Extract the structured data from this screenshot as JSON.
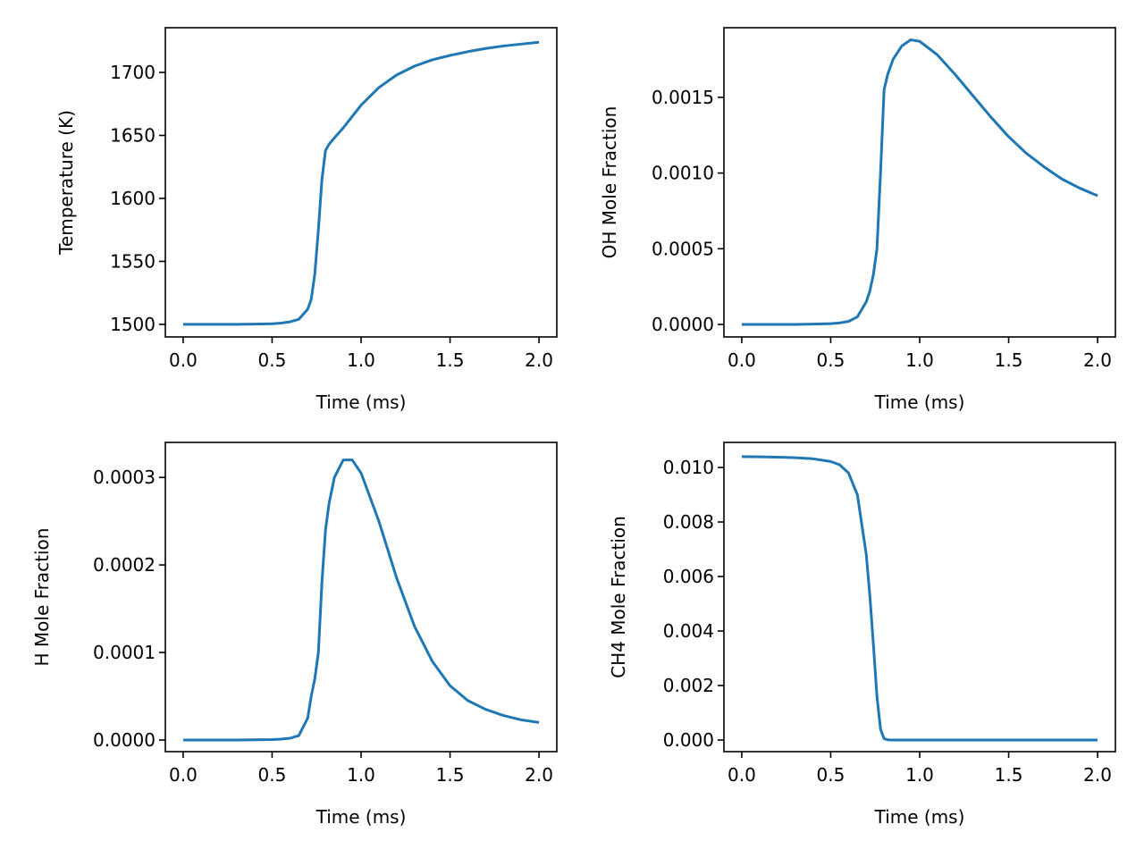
{
  "chart_data": [
    {
      "type": "line",
      "xlabel": "Time (ms)",
      "ylabel": "Temperature (K)",
      "color": "#1f77b4",
      "x": [
        0,
        0.1,
        0.2,
        0.3,
        0.4,
        0.5,
        0.55,
        0.6,
        0.65,
        0.7,
        0.72,
        0.74,
        0.76,
        0.78,
        0.8,
        0.82,
        0.85,
        0.9,
        0.95,
        1.0,
        1.1,
        1.2,
        1.3,
        1.4,
        1.5,
        1.6,
        1.7,
        1.8,
        1.9,
        2.0
      ],
      "values": [
        1500,
        1500,
        1500,
        1500,
        1500.2,
        1500.5,
        1501,
        1502,
        1504,
        1512,
        1520,
        1540,
        1575,
        1615,
        1638,
        1643,
        1648,
        1656,
        1665,
        1674,
        1688,
        1698,
        1705,
        1710,
        1713.5,
        1716.5,
        1719,
        1721,
        1722.5,
        1724
      ],
      "xlim": [
        -0.1,
        2.1
      ],
      "ylim": [
        1490,
        1735.5
      ],
      "xticks": [
        {
          "value": 0,
          "label": "0.0"
        },
        0.5,
        {
          "value": 1,
          "label": "1.0"
        },
        1.5,
        {
          "value": 2,
          "label": "2.0"
        }
      ],
      "yticks": [
        1500,
        1550,
        1600,
        1650,
        1700
      ]
    },
    {
      "type": "line",
      "xlabel": "Time (ms)",
      "ylabel": "OH Mole Fraction",
      "color": "#1f77b4",
      "x": [
        0,
        0.1,
        0.2,
        0.3,
        0.4,
        0.5,
        0.55,
        0.6,
        0.65,
        0.7,
        0.72,
        0.74,
        0.76,
        0.78,
        0.8,
        0.82,
        0.85,
        0.9,
        0.95,
        1.0,
        1.1,
        1.2,
        1.3,
        1.4,
        1.5,
        1.6,
        1.7,
        1.8,
        1.9,
        2.0
      ],
      "values": [
        0,
        0,
        0,
        0,
        2e-06,
        5e-06,
        1e-05,
        2e-05,
        5e-05,
        0.00015,
        0.00022,
        0.00033,
        0.0005,
        0.001,
        0.00155,
        0.00165,
        0.00175,
        0.00184,
        0.00188,
        0.00187,
        0.00178,
        0.00165,
        0.00151,
        0.00137,
        0.00124,
        0.00113,
        0.00104,
        0.00096,
        0.0009,
        0.00085
      ],
      "xlim": [
        -0.1,
        2.1
      ],
      "ylim": [
        -8.26e-05,
        0.00196
      ],
      "xticks": [
        {
          "value": 0,
          "label": "0.0"
        },
        0.5,
        {
          "value": 1,
          "label": "1.0"
        },
        1.5,
        {
          "value": 2,
          "label": "2.0"
        }
      ],
      "yticks": [
        {
          "value": 0,
          "label": "0.0000"
        },
        0.0005,
        {
          "value": 0.001,
          "label": "0.0010"
        },
        0.0015
      ]
    },
    {
      "type": "line",
      "xlabel": "Time (ms)",
      "ylabel": "H Mole Fraction",
      "color": "#1f77b4",
      "x": [
        0,
        0.1,
        0.2,
        0.3,
        0.4,
        0.5,
        0.55,
        0.6,
        0.65,
        0.7,
        0.72,
        0.74,
        0.76,
        0.78,
        0.8,
        0.82,
        0.85,
        0.9,
        0.95,
        1.0,
        1.1,
        1.2,
        1.3,
        1.4,
        1.5,
        1.6,
        1.7,
        1.8,
        1.9,
        2.0
      ],
      "values": [
        0,
        0,
        0,
        0,
        2e-07,
        5e-07,
        1e-06,
        2e-06,
        5e-06,
        2.5e-05,
        5e-05,
        7e-05,
        0.0001,
        0.00018,
        0.00024,
        0.00027,
        0.0003,
        0.00032,
        0.00032,
        0.000305,
        0.00025,
        0.000185,
        0.00013,
        9e-05,
        6.2e-05,
        4.5e-05,
        3.5e-05,
        2.8e-05,
        2.3e-05,
        2e-05
      ],
      "xlim": [
        -0.1,
        2.1
      ],
      "ylim": [
        -1.33e-05,
        0.00034
      ],
      "xticks": [
        {
          "value": 0,
          "label": "0.0"
        },
        0.5,
        {
          "value": 1,
          "label": "1.0"
        },
        1.5,
        {
          "value": 2,
          "label": "2.0"
        }
      ],
      "yticks": [
        {
          "value": 0,
          "label": "0.0000"
        },
        0.0001,
        0.0002,
        0.0003
      ]
    },
    {
      "type": "line",
      "xlabel": "Time (ms)",
      "ylabel": "CH4 Mole Fraction",
      "color": "#1f77b4",
      "x": [
        0,
        0.1,
        0.2,
        0.3,
        0.4,
        0.5,
        0.55,
        0.6,
        0.65,
        0.7,
        0.72,
        0.74,
        0.76,
        0.78,
        0.8,
        0.82,
        0.85,
        0.9,
        0.95,
        1.0,
        1.1,
        1.2,
        1.3,
        1.4,
        1.5,
        1.6,
        1.7,
        1.8,
        1.9,
        2.0
      ],
      "values": [
        0.0104,
        0.01039,
        0.01038,
        0.01036,
        0.01032,
        0.01022,
        0.0101,
        0.0098,
        0.009,
        0.0068,
        0.0053,
        0.0035,
        0.0016,
        0.0004,
        5e-05,
        1e-05,
        0,
        0,
        0,
        0,
        0,
        0,
        0,
        0,
        0,
        0,
        0,
        0,
        0,
        0
      ],
      "xlim": [
        -0.1,
        2.1
      ],
      "ylim": [
        -0.000426,
        0.01092
      ],
      "xticks": [
        {
          "value": 0,
          "label": "0.0"
        },
        0.5,
        {
          "value": 1,
          "label": "1.0"
        },
        1.5,
        {
          "value": 2,
          "label": "2.0"
        }
      ],
      "yticks": [
        {
          "value": 0,
          "label": "0.000"
        },
        0.002,
        0.004,
        0.006,
        0.008,
        {
          "value": 0.01,
          "label": "0.010"
        }
      ]
    }
  ]
}
